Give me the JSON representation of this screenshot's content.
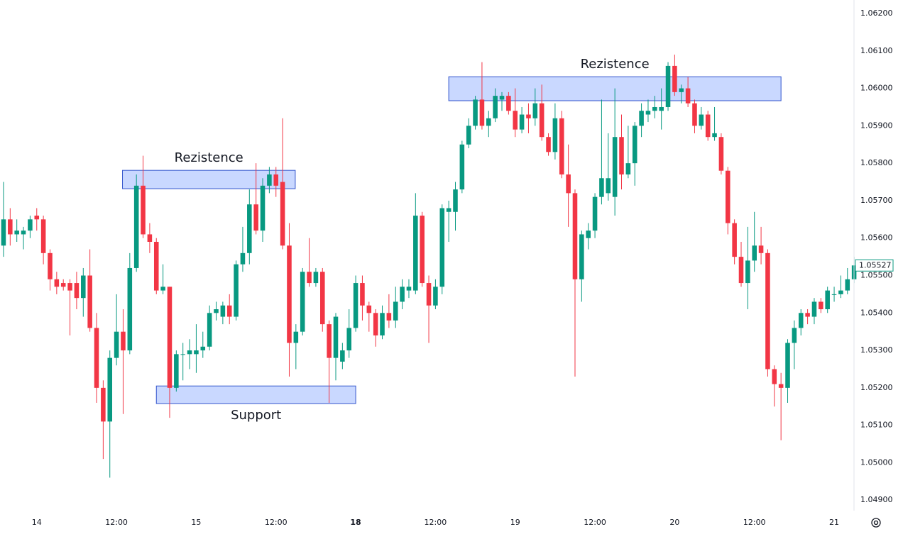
{
  "chart_data": {
    "type": "candlestick",
    "up_color": "#089981",
    "down_color": "#f23645",
    "grid": true,
    "xlim": [
      -0.53,
      128.2
    ],
    "ylim": [
      1.04872,
      1.06236
    ],
    "xticks": [
      {
        "value": 5,
        "label": "14"
      },
      {
        "value": 17,
        "label": "12:00"
      },
      {
        "value": 29,
        "label": "15"
      },
      {
        "value": 41,
        "label": "12:00"
      },
      {
        "value": 53,
        "label": "18",
        "bold": true
      },
      {
        "value": 65,
        "label": "12:00"
      },
      {
        "value": 77,
        "label": "19"
      },
      {
        "value": 89,
        "label": "12:00"
      },
      {
        "value": 101,
        "label": "20"
      },
      {
        "value": 113,
        "label": "12:00"
      },
      {
        "value": 125,
        "label": "21"
      }
    ],
    "yticks": [
      {
        "value": 1.049,
        "label": "1.04900"
      },
      {
        "value": 1.05,
        "label": "1.05000"
      },
      {
        "value": 1.051,
        "label": "1.05100"
      },
      {
        "value": 1.052,
        "label": "1.05200"
      },
      {
        "value": 1.053,
        "label": "1.05300"
      },
      {
        "value": 1.054,
        "label": "1.05400"
      },
      {
        "value": 1.055,
        "label": "1.05500"
      },
      {
        "value": 1.056,
        "label": "1.05600"
      },
      {
        "value": 1.057,
        "label": "1.05700"
      },
      {
        "value": 1.058,
        "label": "1.05800"
      },
      {
        "value": 1.059,
        "label": "1.05900"
      },
      {
        "value": 1.06,
        "label": "1.06000"
      },
      {
        "value": 1.061,
        "label": "1.06100"
      },
      {
        "value": 1.062,
        "label": "1.06200"
      }
    ],
    "last_price": {
      "value": 1.05527,
      "label": "1.05527"
    },
    "zones": [
      {
        "label": "Rezistence",
        "x": [
          17.9,
          43.9
        ],
        "y": [
          1.05732,
          1.05781
        ]
      },
      {
        "label": "Support",
        "x": [
          23.0,
          53.0
        ],
        "y": [
          1.05158,
          1.05205
        ]
      },
      {
        "label": "Rezistence",
        "x": [
          67.0,
          117.0
        ],
        "y": [
          1.05967,
          1.06031
        ]
      }
    ],
    "open": [
      1.0558,
      1.0565,
      1.0561,
      1.0561,
      1.0562,
      1.0566,
      1.0565,
      1.0556,
      1.0549,
      1.0548,
      1.0548,
      1.0548,
      1.0544,
      1.055,
      1.0536,
      1.052,
      1.0511,
      1.0528,
      1.0535,
      1.053,
      1.0552,
      1.0574,
      1.0561,
      1.0559,
      1.0546,
      1.0547,
      1.052,
      1.0529,
      1.0529,
      1.0529,
      1.053,
      1.0531,
      1.054,
      1.0539,
      1.0542,
      1.0539,
      1.0553,
      1.0556,
      1.0569,
      1.0562,
      1.0574,
      1.0577,
      1.0575,
      1.0558,
      1.0532,
      1.0535,
      1.0551,
      1.0548,
      1.0551,
      1.0537,
      1.0528,
      1.0527,
      1.053,
      1.0536,
      1.0548,
      1.0542,
      1.054,
      1.0534,
      1.054,
      1.0538,
      1.0543,
      1.0546,
      1.0546,
      1.0566,
      1.0548,
      1.0542,
      1.0547,
      1.0567,
      1.0567,
      1.0573,
      1.0585,
      1.059,
      1.0597,
      1.059,
      1.0592,
      1.0597,
      1.0598,
      1.0594,
      1.0589,
      1.0593,
      1.0592,
      1.0596,
      1.0587,
      1.0583,
      1.0592,
      1.0577,
      1.0572,
      1.0549,
      1.056,
      1.0562,
      1.0571,
      1.0572,
      1.0571,
      1.0587,
      1.0577,
      1.058,
      1.059,
      1.0593,
      1.0594,
      1.0594,
      1.0595,
      1.0606,
      1.0599,
      1.06,
      1.0596,
      1.059,
      1.0593,
      1.0587,
      1.0587,
      1.0578,
      1.0564,
      1.0555,
      1.0548,
      1.0554,
      1.0558,
      1.0556,
      1.0525,
      1.0521,
      1.052,
      1.0532,
      1.0536,
      1.054,
      1.0539,
      1.0543,
      1.0541,
      1.0545,
      1.0545,
      1.0546,
      1.0549
    ],
    "close": [
      1.0565,
      1.0561,
      1.0562,
      1.0562,
      1.0565,
      1.0565,
      1.0556,
      1.0549,
      1.0547,
      1.0547,
      1.0546,
      1.0544,
      1.055,
      1.0536,
      1.052,
      1.0511,
      1.0528,
      1.0535,
      1.053,
      1.0552,
      1.0574,
      1.0561,
      1.0559,
      1.0546,
      1.0547,
      1.052,
      1.0529,
      1.0529,
      1.053,
      1.053,
      1.0531,
      1.054,
      1.0541,
      1.0542,
      1.0539,
      1.0553,
      1.0556,
      1.0569,
      1.0562,
      1.0574,
      1.0577,
      1.0574,
      1.0558,
      1.0532,
      1.0535,
      1.0551,
      1.0548,
      1.0551,
      1.0537,
      1.0528,
      1.0539,
      1.053,
      1.0536,
      1.0548,
      1.0542,
      1.054,
      1.0534,
      1.054,
      1.0538,
      1.0543,
      1.0547,
      1.0547,
      1.0566,
      1.0548,
      1.0542,
      1.0547,
      1.0568,
      1.0568,
      1.0573,
      1.0585,
      1.059,
      1.0597,
      1.059,
      1.0592,
      1.0598,
      1.0598,
      1.0594,
      1.0589,
      1.0593,
      1.0592,
      1.0596,
      1.0587,
      1.0583,
      1.0592,
      1.0577,
      1.0572,
      1.0549,
      1.0561,
      1.0562,
      1.0571,
      1.0576,
      1.0576,
      1.0587,
      1.0577,
      1.058,
      1.059,
      1.0594,
      1.0594,
      1.0595,
      1.0595,
      1.0606,
      1.0599,
      1.06,
      1.0596,
      1.059,
      1.0593,
      1.0587,
      1.0588,
      1.0578,
      1.0564,
      1.0555,
      1.0548,
      1.0554,
      1.0558,
      1.0556,
      1.0525,
      1.0521,
      1.052,
      1.0532,
      1.0536,
      1.054,
      1.0539,
      1.0543,
      1.0541,
      1.0546,
      1.0545,
      1.0546,
      1.0549,
      1.05527
    ],
    "high": [
      1.0575,
      1.0568,
      1.0565,
      1.0563,
      1.0566,
      1.0568,
      1.0566,
      1.0557,
      1.0551,
      1.0549,
      1.0549,
      1.0551,
      1.0552,
      1.0557,
      1.054,
      1.0522,
      1.053,
      1.0545,
      1.0541,
      1.0556,
      1.0577,
      1.0582,
      1.0564,
      1.056,
      1.0553,
      1.0547,
      1.053,
      1.0532,
      1.0533,
      1.0537,
      1.0535,
      1.0542,
      1.0543,
      1.0543,
      1.0545,
      1.0554,
      1.0563,
      1.0573,
      1.058,
      1.0576,
      1.0579,
      1.0579,
      1.0592,
      1.0564,
      1.0537,
      1.0552,
      1.056,
      1.0552,
      1.0552,
      1.0538,
      1.054,
      1.0532,
      1.0541,
      1.055,
      1.055,
      1.0543,
      1.0541,
      1.0542,
      1.0545,
      1.0547,
      1.0549,
      1.0549,
      1.0572,
      1.0567,
      1.055,
      1.0549,
      1.0569,
      1.057,
      1.0575,
      1.0586,
      1.0592,
      1.0598,
      1.0607,
      1.0594,
      1.06,
      1.0599,
      1.0599,
      1.06,
      1.0595,
      1.0596,
      1.06,
      1.0601,
      1.0588,
      1.0596,
      1.0594,
      1.0585,
      1.0573,
      1.0562,
      1.0564,
      1.0572,
      1.0597,
      1.0588,
      1.06,
      1.0593,
      1.059,
      1.0591,
      1.0596,
      1.0597,
      1.0598,
      1.06,
      1.0607,
      1.0609,
      1.0601,
      1.0603,
      1.0597,
      1.0595,
      1.0594,
      1.0595,
      1.0588,
      1.0579,
      1.0565,
      1.0559,
      1.0563,
      1.0567,
      1.0563,
      1.0557,
      1.0526,
      1.0524,
      1.0533,
      1.0538,
      1.0541,
      1.0541,
      1.0544,
      1.0544,
      1.0547,
      1.0547,
      1.055,
      1.0552,
      1.0555
    ],
    "low": [
      1.0555,
      1.0558,
      1.0559,
      1.0557,
      1.056,
      1.0562,
      1.0553,
      1.0546,
      1.0545,
      1.0546,
      1.0534,
      1.0541,
      1.0539,
      1.0535,
      1.0516,
      1.0501,
      1.0496,
      1.0526,
      1.0513,
      1.0529,
      1.0551,
      1.056,
      1.0556,
      1.0545,
      1.0545,
      1.0512,
      1.0519,
      1.0522,
      1.0525,
      1.0524,
      1.0528,
      1.053,
      1.0538,
      1.0537,
      1.0537,
      1.0538,
      1.0551,
      1.0553,
      1.0561,
      1.0559,
      1.0572,
      1.0571,
      1.0557,
      1.0523,
      1.0525,
      1.0534,
      1.0547,
      1.0547,
      1.0535,
      1.0516,
      1.0522,
      1.0525,
      1.0528,
      1.0535,
      1.0538,
      1.0535,
      1.0531,
      1.0533,
      1.0536,
      1.0536,
      1.0541,
      1.0544,
      1.0545,
      1.0547,
      1.0532,
      1.0541,
      1.0545,
      1.0559,
      1.0562,
      1.0572,
      1.0584,
      1.0589,
      1.0589,
      1.0587,
      1.0591,
      1.0594,
      1.0593,
      1.0587,
      1.0588,
      1.0588,
      1.059,
      1.0586,
      1.0582,
      1.0581,
      1.0576,
      1.0563,
      1.0523,
      1.0543,
      1.0557,
      1.056,
      1.0569,
      1.057,
      1.0566,
      1.0573,
      1.0576,
      1.0574,
      1.0587,
      1.0591,
      1.0592,
      1.0589,
      1.0594,
      1.0598,
      1.0596,
      1.0595,
      1.0588,
      1.0589,
      1.0586,
      1.0586,
      1.0577,
      1.0561,
      1.0553,
      1.0547,
      1.0541,
      1.0551,
      1.0553,
      1.0523,
      1.0515,
      1.0506,
      1.0516,
      1.0525,
      1.0534,
      1.0537,
      1.0537,
      1.054,
      1.054,
      1.0543,
      1.0544,
      1.0545,
      1.0548
    ]
  }
}
